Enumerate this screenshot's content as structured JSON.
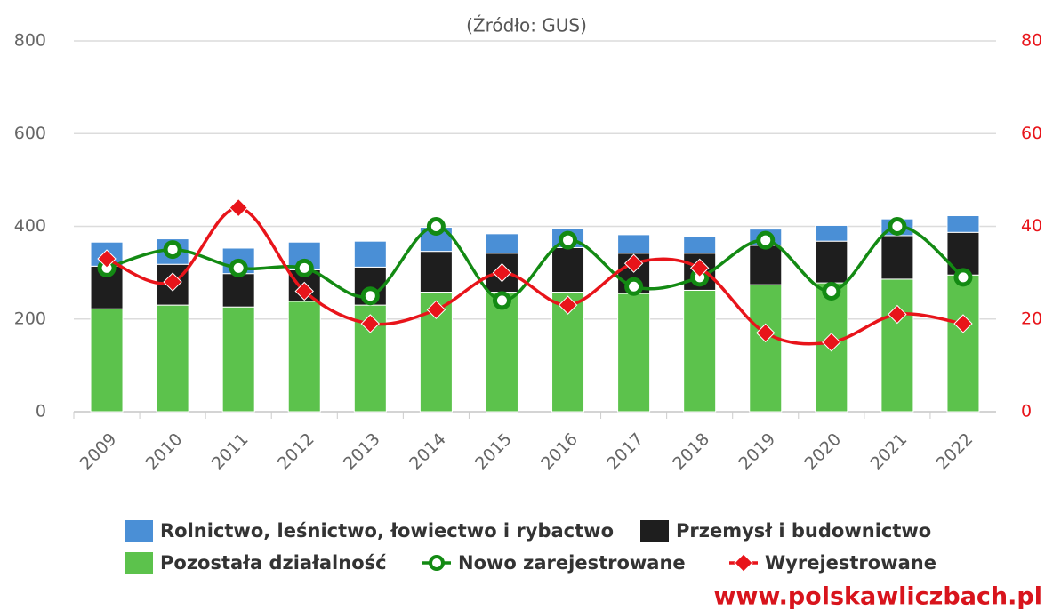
{
  "chart_data": {
    "type": "bar",
    "stacked": true,
    "subtitle": "(Źródło: GUS)",
    "watermark": "www.polskawliczbach.pl",
    "categories": [
      "2009",
      "2010",
      "2011",
      "2012",
      "2013",
      "2014",
      "2015",
      "2016",
      "2017",
      "2018",
      "2019",
      "2020",
      "2021",
      "2022"
    ],
    "series": [
      {
        "name": "Pozostała działalność",
        "color": "#5cc24c",
        "values": [
          222,
          230,
          226,
          238,
          230,
          258,
          258,
          258,
          255,
          262,
          274,
          278,
          286,
          295
        ]
      },
      {
        "name": "Przemysł i budownictwo",
        "color": "#1e1e1e",
        "values": [
          92,
          88,
          72,
          68,
          82,
          88,
          84,
          96,
          87,
          80,
          85,
          90,
          94,
          92
        ]
      },
      {
        "name": "Rolnictwo, leśnictwo, łowiectwo i rybactwo",
        "color": "#4a8fd6",
        "values": [
          52,
          55,
          55,
          60,
          56,
          52,
          42,
          42,
          40,
          36,
          35,
          34,
          36,
          36
        ]
      },
      {
        "name": "Nowo zarejestrowane",
        "type": "line",
        "axis": "y2",
        "marker": "circle",
        "color": "#138a13",
        "values": [
          31,
          35,
          31,
          31,
          25,
          40,
          24,
          37,
          27,
          29,
          37,
          26,
          40,
          29
        ]
      },
      {
        "name": "Wyrejestrowane",
        "type": "line",
        "axis": "y2",
        "marker": "diamond",
        "color": "#e8141a",
        "values": [
          33,
          28,
          44,
          26,
          19,
          22,
          30,
          23,
          32,
          31,
          17,
          15,
          21,
          19
        ]
      }
    ],
    "ylim": [
      0,
      800
    ],
    "yticks": [
      0,
      200,
      400,
      600,
      800
    ],
    "y2lim": [
      0,
      80
    ],
    "y2ticks": [
      0,
      20,
      40,
      60,
      80
    ],
    "grid": true
  }
}
